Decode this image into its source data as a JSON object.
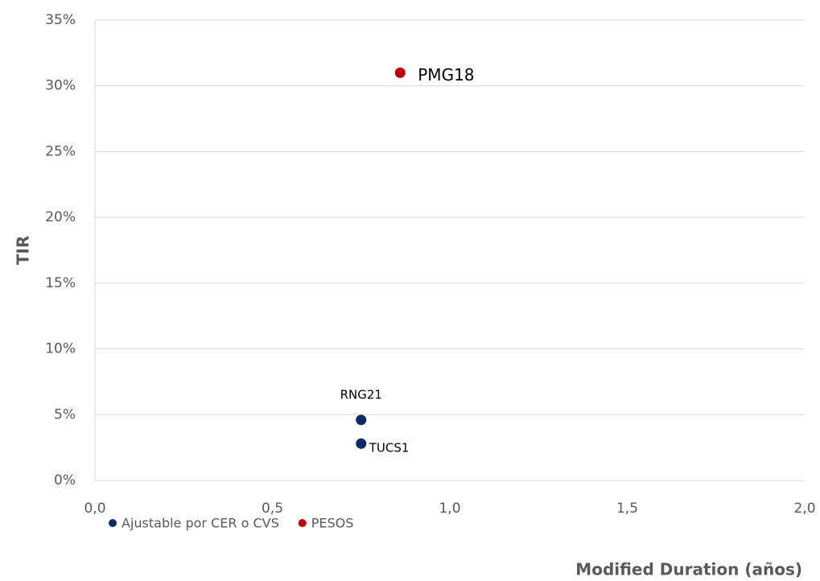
{
  "chart_data": {
    "type": "scatter",
    "x_label": "Modified Duration (años)",
    "y_label": "TIR",
    "xlim": [
      0,
      2
    ],
    "xticks": [
      {
        "value": 0,
        "label": "0,0"
      },
      {
        "value": 0.5,
        "label": "0,5"
      },
      {
        "value": 1,
        "label": "1,0"
      },
      {
        "value": 1.5,
        "label": "1,5"
      },
      {
        "value": 2,
        "label": "2,0"
      }
    ],
    "ylim": [
      0,
      35
    ],
    "yticks": [
      {
        "value": 0,
        "label": "0%"
      },
      {
        "value": 5,
        "label": "5%"
      },
      {
        "value": 10,
        "label": "10%"
      },
      {
        "value": 15,
        "label": "15%"
      },
      {
        "value": 20,
        "label": "20%"
      },
      {
        "value": 25,
        "label": "25%"
      },
      {
        "value": 30,
        "label": "30%"
      },
      {
        "value": 35,
        "label": "35%"
      }
    ],
    "grid": true,
    "legend": "bottom-left",
    "series": [
      {
        "name": "Ajustable por CER o CVS",
        "color": "#0e2a6b",
        "x": [
          0.75,
          0.75
        ],
        "values": [
          4.6,
          2.8
        ],
        "point_labels": [
          "RNG21",
          "TUCS1"
        ]
      },
      {
        "name": "PESOS",
        "color": "#c00000",
        "x": [
          0.86
        ],
        "values": [
          31.0
        ],
        "point_labels": [
          "PMG18"
        ]
      }
    ]
  }
}
